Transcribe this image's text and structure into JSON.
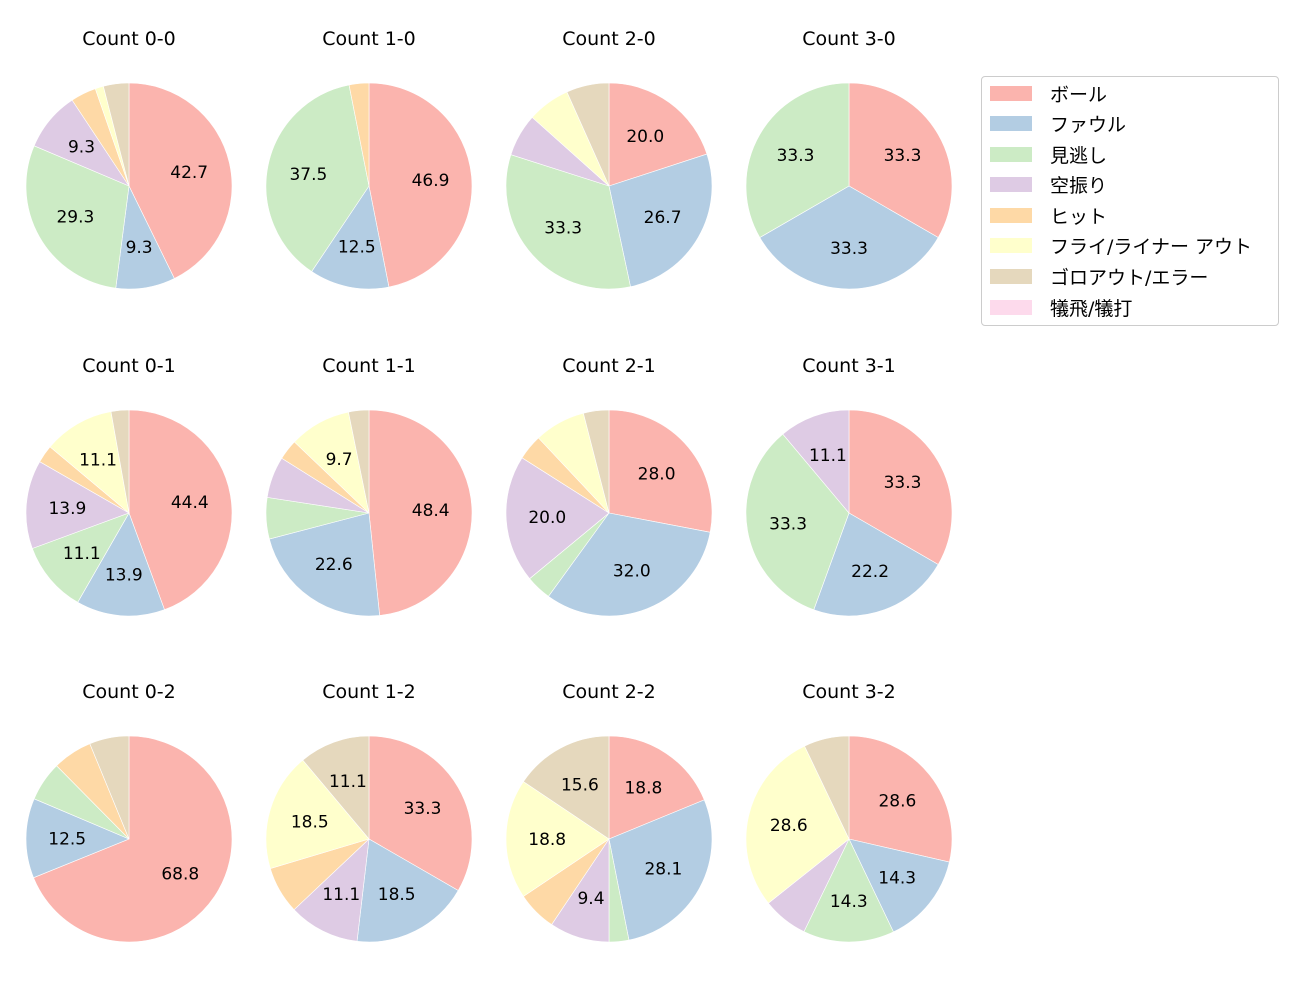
{
  "legend": {
    "items": [
      {
        "label": "ボール",
        "color": "#fbb4ae"
      },
      {
        "label": "ファウル",
        "color": "#b3cde3"
      },
      {
        "label": "見逃し",
        "color": "#ccebc5"
      },
      {
        "label": "空振り",
        "color": "#decbe4"
      },
      {
        "label": "ヒット",
        "color": "#fed9a6"
      },
      {
        "label": "フライ/ライナー アウト",
        "color": "#ffffcc"
      },
      {
        "label": "ゴロアウト/エラー",
        "color": "#e5d8bd"
      },
      {
        "label": "犠飛/犠打",
        "color": "#fddaec"
      }
    ]
  },
  "chart_data": {
    "type": "pie",
    "title": "",
    "categories": [
      "ボール",
      "ファウル",
      "見逃し",
      "空振り",
      "ヒット",
      "フライ/ライナー アウト",
      "ゴロアウト/エラー",
      "犠飛/犠打"
    ],
    "colors": [
      "#fbb4ae",
      "#b3cde3",
      "#ccebc5",
      "#decbe4",
      "#fed9a6",
      "#ffffcc",
      "#e5d8bd",
      "#fddaec"
    ],
    "label_threshold": 9,
    "legend_position": "upper right",
    "pies": [
      {
        "title": "Count 0-0",
        "values": [
          42.7,
          9.3,
          29.3,
          9.3,
          4.0,
          1.3,
          4.0,
          0
        ]
      },
      {
        "title": "Count 1-0",
        "values": [
          46.9,
          12.5,
          37.5,
          0,
          3.1,
          0,
          0,
          0
        ]
      },
      {
        "title": "Count 2-0",
        "values": [
          20.0,
          26.7,
          33.3,
          6.7,
          0,
          6.7,
          6.7,
          0
        ]
      },
      {
        "title": "Count 3-0",
        "values": [
          33.3,
          33.3,
          33.3,
          0,
          0,
          0,
          0,
          0
        ]
      },
      {
        "title": "Count 0-1",
        "values": [
          44.4,
          13.9,
          11.1,
          13.9,
          2.8,
          11.1,
          2.8,
          0
        ]
      },
      {
        "title": "Count 1-1",
        "values": [
          48.4,
          22.6,
          6.5,
          6.5,
          3.2,
          9.7,
          3.2,
          0
        ]
      },
      {
        "title": "Count 2-1",
        "values": [
          28.0,
          32.0,
          4.0,
          20.0,
          4.0,
          8.0,
          4.0,
          0
        ]
      },
      {
        "title": "Count 3-1",
        "values": [
          33.3,
          22.2,
          33.3,
          11.1,
          0,
          0,
          0,
          0
        ]
      },
      {
        "title": "Count 0-2",
        "values": [
          68.8,
          12.5,
          6.2,
          0,
          6.2,
          0,
          6.2,
          0
        ]
      },
      {
        "title": "Count 1-2",
        "values": [
          33.3,
          18.5,
          0,
          11.1,
          7.4,
          18.5,
          11.1,
          0
        ]
      },
      {
        "title": "Count 2-2",
        "values": [
          18.8,
          28.1,
          3.1,
          9.4,
          6.2,
          18.8,
          15.6,
          0
        ]
      },
      {
        "title": "Count 3-2",
        "values": [
          28.6,
          14.3,
          14.3,
          7.1,
          0,
          28.6,
          7.1,
          0
        ]
      }
    ]
  }
}
